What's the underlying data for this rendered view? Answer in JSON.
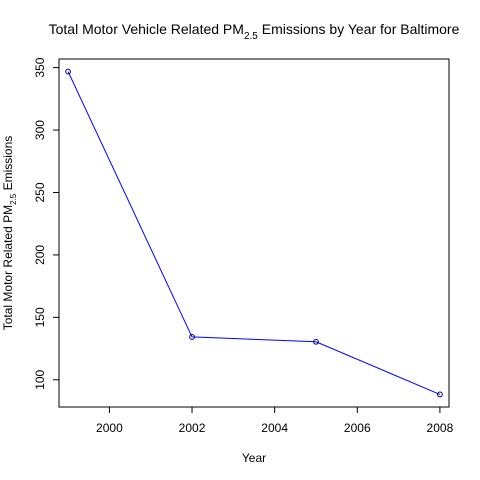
{
  "chart_data": {
    "type": "line",
    "title": {
      "prefix": "Total Motor Vehicle Related  PM",
      "subscript": "2.5",
      "suffix": " Emissions by Year for Baltimore"
    },
    "xlabel": "Year",
    "ylabel": {
      "prefix": "Total Motor Related  PM",
      "subscript": "2.5",
      "suffix": " Emissions"
    },
    "x": [
      1999,
      2002,
      2005,
      2008
    ],
    "y": [
      346.82,
      134.31,
      130.43,
      88.28
    ],
    "xlim": [
      1998.78,
      2008.22
    ],
    "ylim": [
      78.2,
      356.9
    ],
    "x_ticks": [
      "2000",
      "2002",
      "2004",
      "2006",
      "2008"
    ],
    "y_ticks": [
      "100",
      "150",
      "200",
      "250",
      "300",
      "350"
    ],
    "grid": false,
    "legend": "none",
    "line_color": "#0000ff",
    "marker_color": "#000080"
  }
}
